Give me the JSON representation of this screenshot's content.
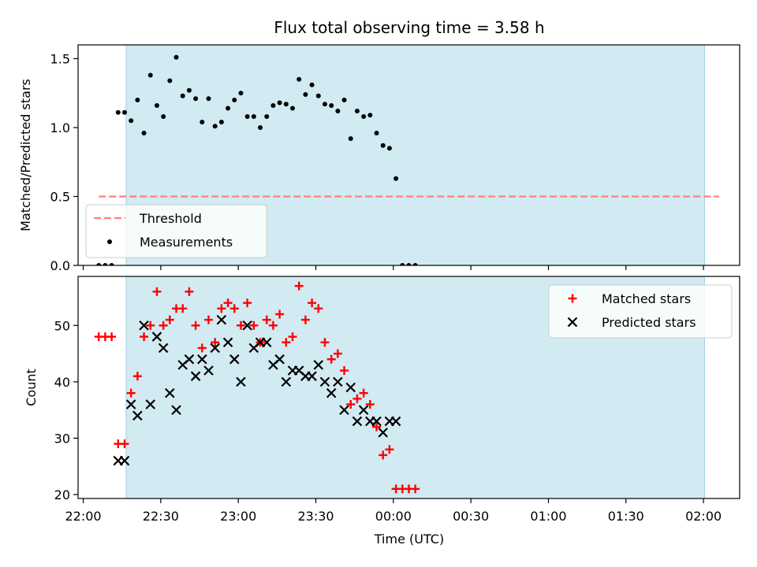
{
  "chart_data": {
    "title": "Flux total observing time = 3.58 h",
    "xlabel": "Time (UTC)",
    "x_tick_labels": [
      "22:00",
      "22:30",
      "23:00",
      "23:30",
      "00:00",
      "00:30",
      "01:00",
      "01:30",
      "02:00"
    ],
    "x_tick_minutes": [
      0,
      30,
      60,
      90,
      120,
      150,
      180,
      210,
      240
    ],
    "x_unit_note": "x values are minutes after 22:00 UTC",
    "xlim": [
      -2,
      254
    ],
    "observing_window": {
      "start": 16.6,
      "end": 240.4,
      "color": "#add8e6"
    },
    "colors": {
      "threshold": "#ff7f7f",
      "measurements": "#000000",
      "matched": "#ff0000",
      "predicted": "#000000"
    },
    "charts": [
      {
        "type": "scatter",
        "ylabel": "Matched/Predicted stars",
        "ylim": [
          0,
          1.6
        ],
        "y_tick_labels": [
          "0.0",
          "0.5",
          "1.0",
          "1.5"
        ],
        "y_ticks": [
          0,
          0.5,
          1.0,
          1.5
        ],
        "legend": {
          "placement": "lower-left",
          "entries": [
            "Threshold",
            "Measurements"
          ]
        },
        "threshold": {
          "name": "Threshold",
          "y": 0.5,
          "x_range": [
            6,
            246
          ]
        },
        "series": [
          {
            "name": "Measurements",
            "points": [
              [
                6,
                0
              ],
              [
                8.5,
                0
              ],
              [
                11,
                0
              ],
              [
                13.5,
                1.11
              ],
              [
                16,
                1.11
              ],
              [
                18.5,
                1.05
              ],
              [
                21,
                1.2
              ],
              [
                23.5,
                0.96
              ],
              [
                26,
                1.38
              ],
              [
                28.5,
                1.16
              ],
              [
                31,
                1.08
              ],
              [
                33.5,
                1.34
              ],
              [
                36,
                1.51
              ],
              [
                38.5,
                1.23
              ],
              [
                41,
                1.27
              ],
              [
                43.5,
                1.21
              ],
              [
                46,
                1.04
              ],
              [
                48.5,
                1.21
              ],
              [
                51,
                1.01
              ],
              [
                53.5,
                1.04
              ],
              [
                56,
                1.14
              ],
              [
                58.5,
                1.2
              ],
              [
                61,
                1.25
              ],
              [
                63.5,
                1.08
              ],
              [
                66,
                1.08
              ],
              [
                68.5,
                1.0
              ],
              [
                71,
                1.08
              ],
              [
                73.5,
                1.16
              ],
              [
                76,
                1.18
              ],
              [
                78.5,
                1.17
              ],
              [
                81,
                1.14
              ],
              [
                83.5,
                1.35
              ],
              [
                86,
                1.24
              ],
              [
                88.5,
                1.31
              ],
              [
                91,
                1.23
              ],
              [
                93.5,
                1.17
              ],
              [
                96,
                1.16
              ],
              [
                98.5,
                1.12
              ],
              [
                101,
                1.2
              ],
              [
                103.5,
                0.92
              ],
              [
                106,
                1.12
              ],
              [
                108.5,
                1.08
              ],
              [
                111,
                1.09
              ],
              [
                113.5,
                0.96
              ],
              [
                116,
                0.87
              ],
              [
                118.5,
                0.85
              ],
              [
                121,
                0.63
              ],
              [
                123.5,
                0
              ],
              [
                126,
                0
              ],
              [
                128.5,
                0
              ]
            ]
          }
        ]
      },
      {
        "type": "scatter",
        "ylabel": "Count",
        "ylim": [
          19.3,
          58.7
        ],
        "y_tick_labels": [
          "20",
          "30",
          "40",
          "50"
        ],
        "y_ticks": [
          20,
          30,
          40,
          50
        ],
        "legend": {
          "placement": "top-right",
          "entries": [
            "Matched stars",
            "Predicted stars"
          ]
        },
        "series": [
          {
            "name": "Matched stars",
            "points": [
              [
                6,
                48
              ],
              [
                8.5,
                48
              ],
              [
                11,
                48
              ],
              [
                13.5,
                29
              ],
              [
                16,
                29
              ],
              [
                18.5,
                38
              ],
              [
                21,
                41
              ],
              [
                23.5,
                48
              ],
              [
                26,
                50
              ],
              [
                28.5,
                56
              ],
              [
                31,
                50
              ],
              [
                33.5,
                51
              ],
              [
                36,
                53
              ],
              [
                38.5,
                53
              ],
              [
                41,
                56
              ],
              [
                43.5,
                50
              ],
              [
                46,
                46
              ],
              [
                48.5,
                51
              ],
              [
                51,
                47
              ],
              [
                53.5,
                53
              ],
              [
                56,
                54
              ],
              [
                58.5,
                53
              ],
              [
                61,
                50
              ],
              [
                63.5,
                54
              ],
              [
                66,
                50
              ],
              [
                68.5,
                47
              ],
              [
                71,
                51
              ],
              [
                73.5,
                50
              ],
              [
                76,
                52
              ],
              [
                78.5,
                47
              ],
              [
                81,
                48
              ],
              [
                83.5,
                57
              ],
              [
                86,
                51
              ],
              [
                88.5,
                54
              ],
              [
                91,
                53
              ],
              [
                93.5,
                47
              ],
              [
                96,
                44
              ],
              [
                98.5,
                45
              ],
              [
                101,
                42
              ],
              [
                103.5,
                36
              ],
              [
                106,
                37
              ],
              [
                108.5,
                38
              ],
              [
                111,
                36
              ],
              [
                113.5,
                32
              ],
              [
                116,
                27
              ],
              [
                118.5,
                28
              ],
              [
                121,
                21
              ],
              [
                123.5,
                21
              ],
              [
                126,
                21
              ],
              [
                128.5,
                21
              ]
            ]
          },
          {
            "name": "Predicted stars",
            "points": [
              [
                13.5,
                26
              ],
              [
                16,
                26
              ],
              [
                18.5,
                36
              ],
              [
                21,
                34
              ],
              [
                23.5,
                50
              ],
              [
                26,
                36
              ],
              [
                28.5,
                48
              ],
              [
                31,
                46
              ],
              [
                33.5,
                38
              ],
              [
                36,
                35
              ],
              [
                38.5,
                43
              ],
              [
                41,
                44
              ],
              [
                43.5,
                41
              ],
              [
                46,
                44
              ],
              [
                48.5,
                42
              ],
              [
                51,
                46
              ],
              [
                53.5,
                51
              ],
              [
                56,
                47
              ],
              [
                58.5,
                44
              ],
              [
                61,
                40
              ],
              [
                63.5,
                50
              ],
              [
                66,
                46
              ],
              [
                68.5,
                47
              ],
              [
                71,
                47
              ],
              [
                73.5,
                43
              ],
              [
                76,
                44
              ],
              [
                78.5,
                40
              ],
              [
                81,
                42
              ],
              [
                83.5,
                42
              ],
              [
                86,
                41
              ],
              [
                88.5,
                41
              ],
              [
                91,
                43
              ],
              [
                93.5,
                40
              ],
              [
                96,
                38
              ],
              [
                98.5,
                40
              ],
              [
                101,
                35
              ],
              [
                103.5,
                39
              ],
              [
                106,
                33
              ],
              [
                108.5,
                35
              ],
              [
                111,
                33
              ],
              [
                113.5,
                33
              ],
              [
                116,
                31
              ],
              [
                118.5,
                33
              ],
              [
                121,
                33
              ]
            ]
          }
        ]
      }
    ]
  }
}
